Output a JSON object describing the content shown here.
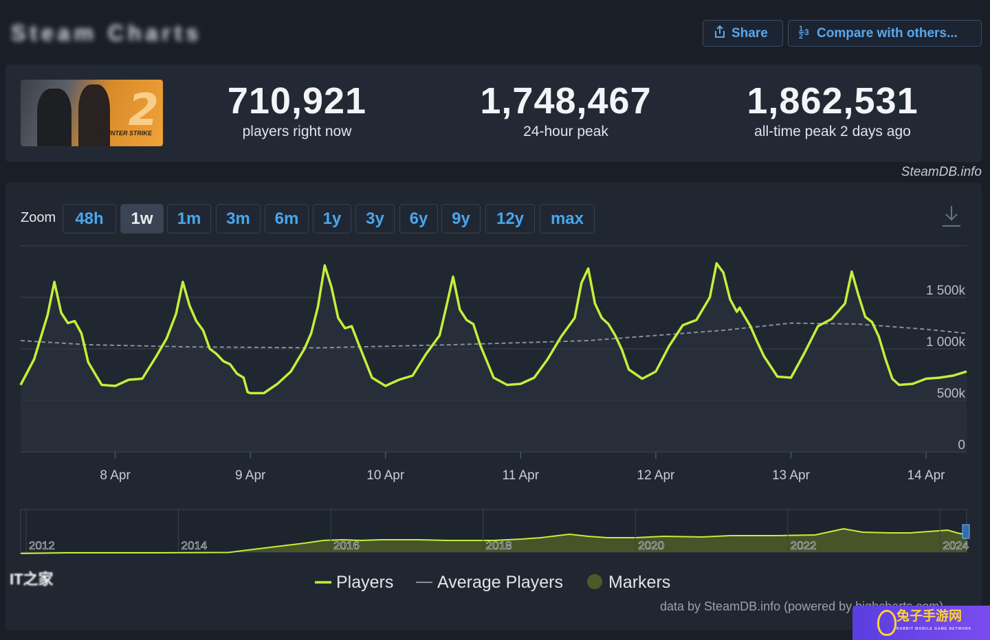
{
  "header": {
    "app_title": "Steam Charts",
    "share_label": "Share",
    "compare_label": "Compare with others...",
    "share_icon": "share-icon",
    "compare_icon": "compare-icon"
  },
  "stats": {
    "game_image_text": "COUNTER STRIKE",
    "game_image_number": "2",
    "current_value": "710,921",
    "current_label": "players right now",
    "peak24_value": "1,748,467",
    "peak24_label": "24-hour peak",
    "alltime_value": "1,862,531",
    "alltime_label": "all-time peak 2 days ago"
  },
  "brand": "SteamDB.info",
  "zoom": {
    "label": "Zoom",
    "options": [
      "48h",
      "1w",
      "1m",
      "3m",
      "6m",
      "1y",
      "3y",
      "6y",
      "9y",
      "12y",
      "max"
    ],
    "active": "1w"
  },
  "legend": {
    "players": "Players",
    "average": "Average Players",
    "markers": "Markers"
  },
  "credit": "data by SteamDB.info (powered by highcharts.com)",
  "watermarks": {
    "left": "IT之家",
    "badge_title": "兔子手游网",
    "badge_sub": "RABBIT MOBILE GAME NETWORK"
  },
  "colors": {
    "players_line": "#c3f03a",
    "average_line": "#8a9099",
    "grid": "#3a4250",
    "accent_blue": "#4aa6ec"
  },
  "chart_data": {
    "type": "line",
    "y_ticks": [
      "1 500k",
      "1 000k",
      "500k",
      "0"
    ],
    "y_tick_values": [
      1500000,
      1000000,
      500000,
      0
    ],
    "ylim": [
      0,
      2000000
    ],
    "x_ticks": [
      "8 Apr",
      "9 Apr",
      "10 Apr",
      "11 Apr",
      "12 Apr",
      "13 Apr",
      "14 Apr"
    ],
    "xlim": [
      -0.7,
      6.3
    ],
    "series": [
      {
        "name": "Players",
        "x": [
          -0.7,
          -0.6,
          -0.5,
          -0.45,
          -0.4,
          -0.35,
          -0.3,
          -0.25,
          -0.2,
          -0.1,
          0.0,
          0.1,
          0.2,
          0.3,
          0.38,
          0.45,
          0.5,
          0.55,
          0.6,
          0.65,
          0.7,
          0.75,
          0.8,
          0.85,
          0.9,
          0.95,
          0.98,
          1.0,
          1.1,
          1.2,
          1.3,
          1.4,
          1.45,
          1.5,
          1.55,
          1.6,
          1.65,
          1.7,
          1.75,
          1.8,
          1.9,
          2.0,
          2.1,
          2.2,
          2.3,
          2.4,
          2.45,
          2.5,
          2.55,
          2.6,
          2.65,
          2.7,
          2.75,
          2.8,
          2.9,
          3.0,
          3.1,
          3.2,
          3.3,
          3.4,
          3.45,
          3.5,
          3.55,
          3.6,
          3.65,
          3.7,
          3.75,
          3.8,
          3.9,
          4.0,
          4.1,
          4.2,
          4.3,
          4.4,
          4.45,
          4.5,
          4.55,
          4.6,
          4.62,
          4.65,
          4.7,
          4.75,
          4.8,
          4.9,
          5.0,
          5.1,
          5.2,
          5.3,
          5.4,
          5.45,
          5.5,
          5.55,
          5.6,
          5.65,
          5.7,
          5.75,
          5.8,
          5.9,
          6.0,
          6.1,
          6.2,
          6.3
        ],
        "y": [
          650000,
          900000,
          1330000,
          1650000,
          1350000,
          1250000,
          1270000,
          1150000,
          870000,
          650000,
          640000,
          700000,
          710000,
          920000,
          1100000,
          1340000,
          1650000,
          1420000,
          1270000,
          1180000,
          1000000,
          950000,
          880000,
          850000,
          760000,
          720000,
          580000,
          570000,
          570000,
          660000,
          780000,
          1000000,
          1150000,
          1410000,
          1810000,
          1600000,
          1300000,
          1200000,
          1220000,
          1050000,
          720000,
          640000,
          700000,
          740000,
          950000,
          1130000,
          1410000,
          1700000,
          1380000,
          1280000,
          1240000,
          1040000,
          880000,
          720000,
          650000,
          660000,
          720000,
          900000,
          1120000,
          1300000,
          1640000,
          1780000,
          1440000,
          1300000,
          1240000,
          1130000,
          990000,
          800000,
          710000,
          780000,
          1030000,
          1230000,
          1280000,
          1500000,
          1830000,
          1740000,
          1480000,
          1360000,
          1400000,
          1330000,
          1220000,
          1070000,
          930000,
          730000,
          720000,
          960000,
          1220000,
          1290000,
          1440000,
          1750000,
          1520000,
          1310000,
          1260000,
          1120000,
          900000,
          710000,
          650000,
          660000,
          710000,
          720000,
          740000,
          780000
        ]
      },
      {
        "name": "Average Players",
        "x": [
          -0.7,
          -0.2,
          0.5,
          1.5,
          2.5,
          3.5,
          4.5,
          5.0,
          5.5,
          6.0,
          6.3
        ],
        "y": [
          1080000,
          1040000,
          1020000,
          1010000,
          1040000,
          1080000,
          1180000,
          1250000,
          1240000,
          1190000,
          1150000
        ]
      }
    ],
    "navigator": {
      "x_ticks": [
        "2012",
        "2014",
        "2016",
        "2018",
        "2020",
        "2022",
        "2024"
      ]
    }
  }
}
